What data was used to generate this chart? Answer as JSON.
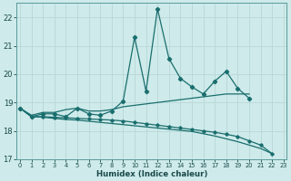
{
  "xlabel": "Humidex (Indice chaleur)",
  "background_color": "#ceeaea",
  "grid_color": "#b8d8d8",
  "line_color": "#1a6e6e",
  "x_values": [
    0,
    1,
    2,
    3,
    4,
    5,
    6,
    7,
    8,
    9,
    10,
    11,
    12,
    13,
    14,
    15,
    16,
    17,
    18,
    19,
    20,
    21,
    22,
    23
  ],
  "series_spiky": [
    18.8,
    18.5,
    18.6,
    18.6,
    18.5,
    18.8,
    18.6,
    18.55,
    18.7,
    19.05,
    21.3,
    19.4,
    22.3,
    20.55,
    19.85,
    19.55,
    19.3,
    19.75,
    20.1,
    19.5,
    19.15,
    null,
    null,
    null
  ],
  "series_rising": [
    18.8,
    18.55,
    18.65,
    18.65,
    18.75,
    18.8,
    18.7,
    18.7,
    18.75,
    18.85,
    18.9,
    18.95,
    19.0,
    19.05,
    19.1,
    19.15,
    19.2,
    19.25,
    19.3,
    19.3,
    19.3,
    null,
    null,
    null
  ],
  "series_decline1": [
    18.8,
    18.5,
    18.5,
    18.48,
    18.46,
    18.44,
    18.42,
    18.4,
    18.38,
    18.35,
    18.3,
    18.25,
    18.2,
    18.15,
    18.1,
    18.05,
    18.0,
    17.95,
    17.88,
    17.8,
    17.65,
    17.5,
    17.2,
    null
  ],
  "series_decline2": [
    18.8,
    18.5,
    18.48,
    18.44,
    18.4,
    18.38,
    18.34,
    18.3,
    18.26,
    18.22,
    18.18,
    18.14,
    18.1,
    18.06,
    18.02,
    17.98,
    17.9,
    17.82,
    17.72,
    17.62,
    17.5,
    17.38,
    17.2,
    null
  ],
  "ylim": [
    17.0,
    22.5
  ],
  "yticks": [
    17,
    18,
    19,
    20,
    21,
    22
  ],
  "xticks": [
    0,
    1,
    2,
    3,
    4,
    5,
    6,
    7,
    8,
    9,
    10,
    11,
    12,
    13,
    14,
    15,
    16,
    17,
    18,
    19,
    20,
    21,
    22,
    23
  ],
  "xlim": [
    -0.3,
    23.3
  ]
}
